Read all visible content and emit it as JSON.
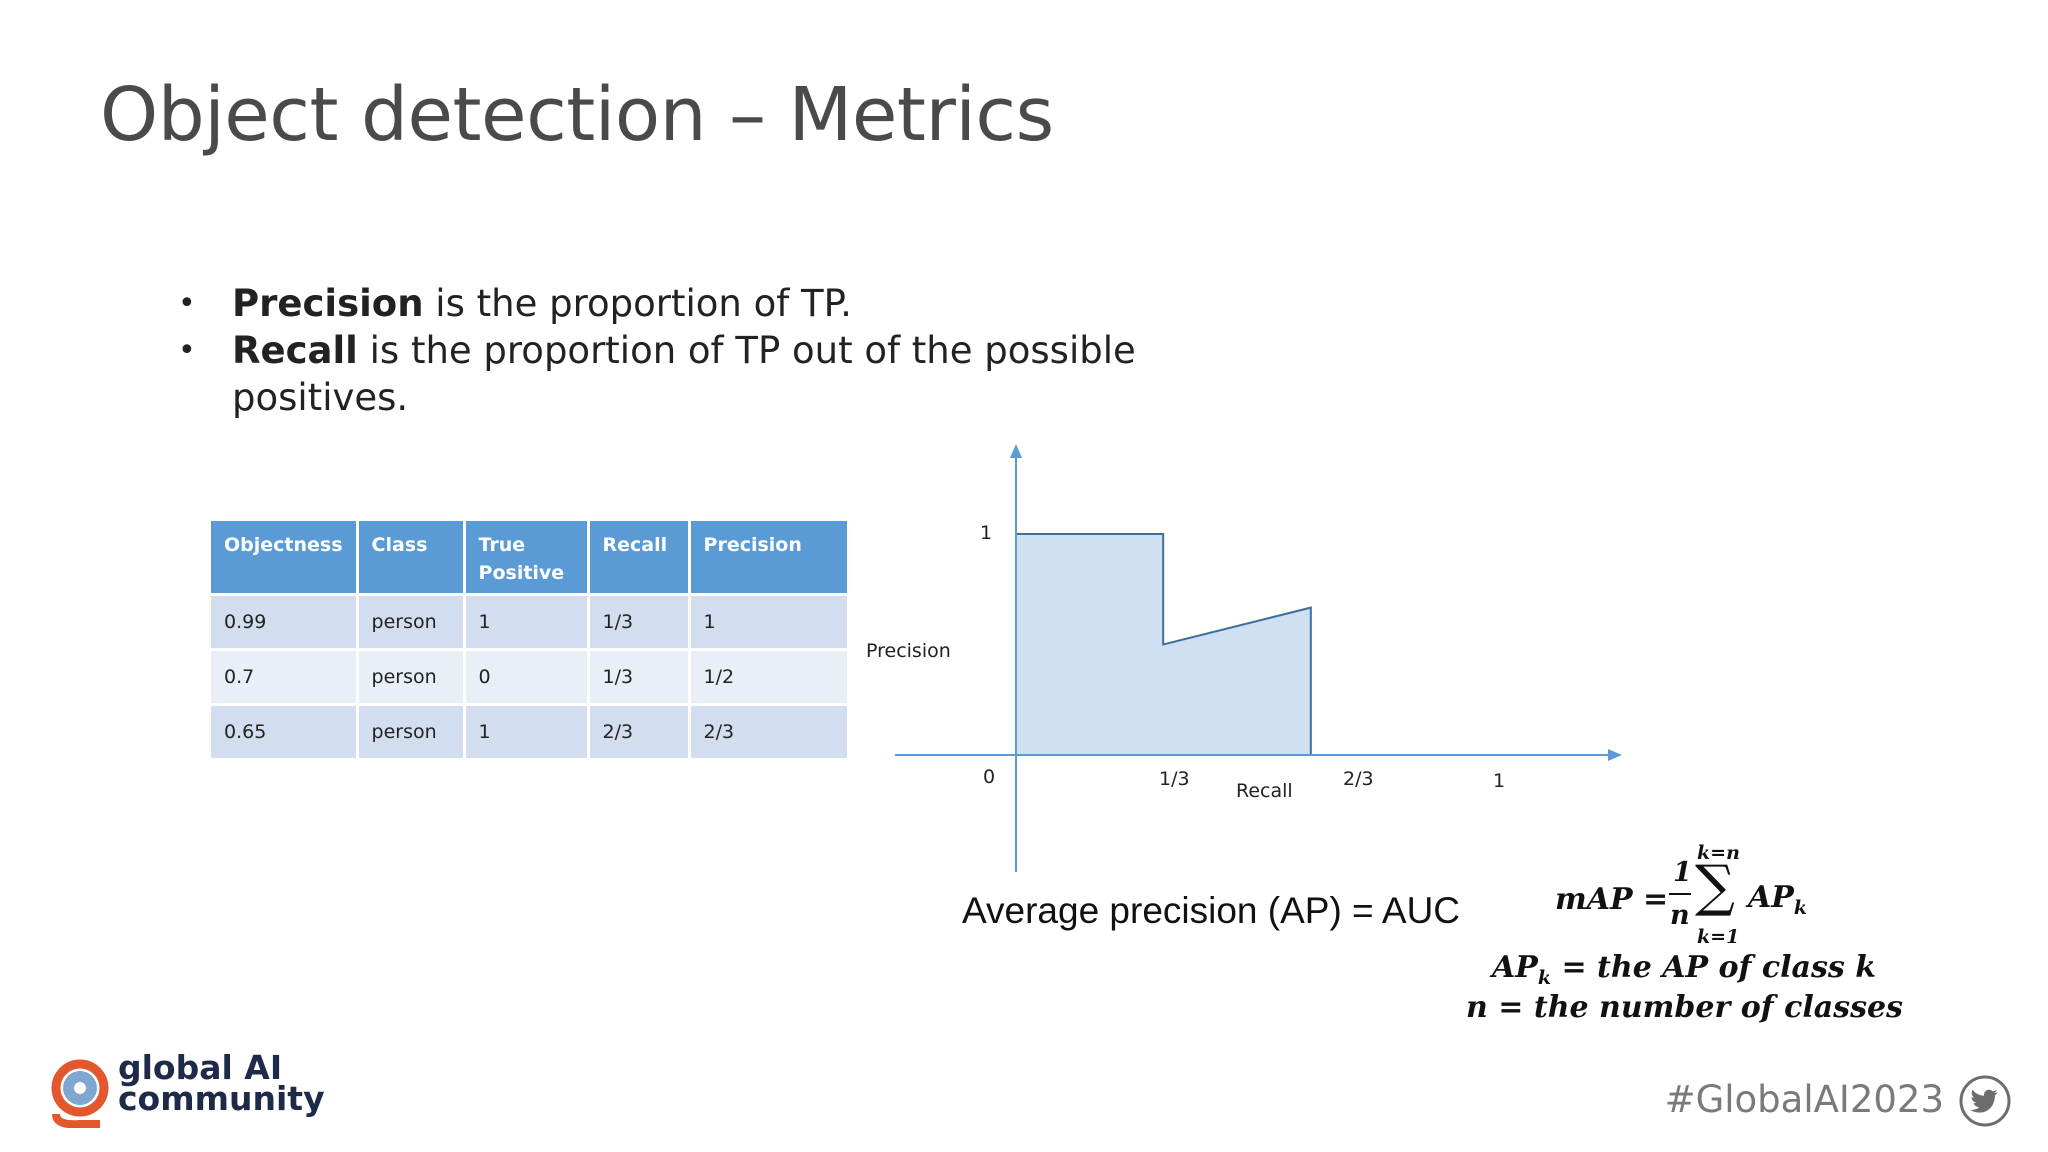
{
  "slide": {
    "title": "Object detection – Metrics"
  },
  "bullets": [
    {
      "term": "Precision",
      "text": " is the proportion of TP."
    },
    {
      "term": "Recall",
      "text": " is the proportion of TP out of the possible positives."
    }
  ],
  "table": {
    "headers": [
      "Objectness",
      "Class",
      "True Positive",
      "Recall",
      "Precision"
    ],
    "rows": [
      [
        "0.99",
        "person",
        "1",
        "1/3",
        "1"
      ],
      [
        "0.7",
        "person",
        "0",
        "1/3",
        "1/2"
      ],
      [
        "0.65",
        "person",
        "1",
        "2/3",
        "2/3"
      ]
    ]
  },
  "chart_data": {
    "type": "area",
    "xlabel": "Recall",
    "ylabel": "Precision",
    "x_ticks": [
      "0",
      "1/3",
      "2/3",
      "1"
    ],
    "y_ticks": [
      "1"
    ],
    "xlim": [
      0,
      1
    ],
    "ylim": [
      0,
      1
    ],
    "series": [
      {
        "x": [
          0,
          0.333,
          0.333,
          0.667,
          0.667
        ],
        "y": [
          1,
          1,
          0.5,
          0.667,
          0
        ]
      }
    ],
    "fill_color": "#cfe0f1",
    "line_color": "#5b9bd5"
  },
  "ap_caption": "Average precision (AP) = AUC",
  "formula": {
    "map_lhs": "mAP =",
    "frac_num": "1",
    "frac_den": "n",
    "sum_top": "k=n",
    "sum_bottom": "k=1",
    "sum_symbol": "∑",
    "sum_term": "AP",
    "sum_sub": "k",
    "line2_lhs": "AP",
    "line2_sub": "k",
    "line2_rhs": " = the AP of class k",
    "line3": "n = the number of classes"
  },
  "footer": {
    "logo_line1": "global AI",
    "logo_line2": "community",
    "hashtag": "#GlobalAI2023",
    "logo_icon": "global-ai-logo-icon",
    "social_icon": "twitter-icon"
  }
}
